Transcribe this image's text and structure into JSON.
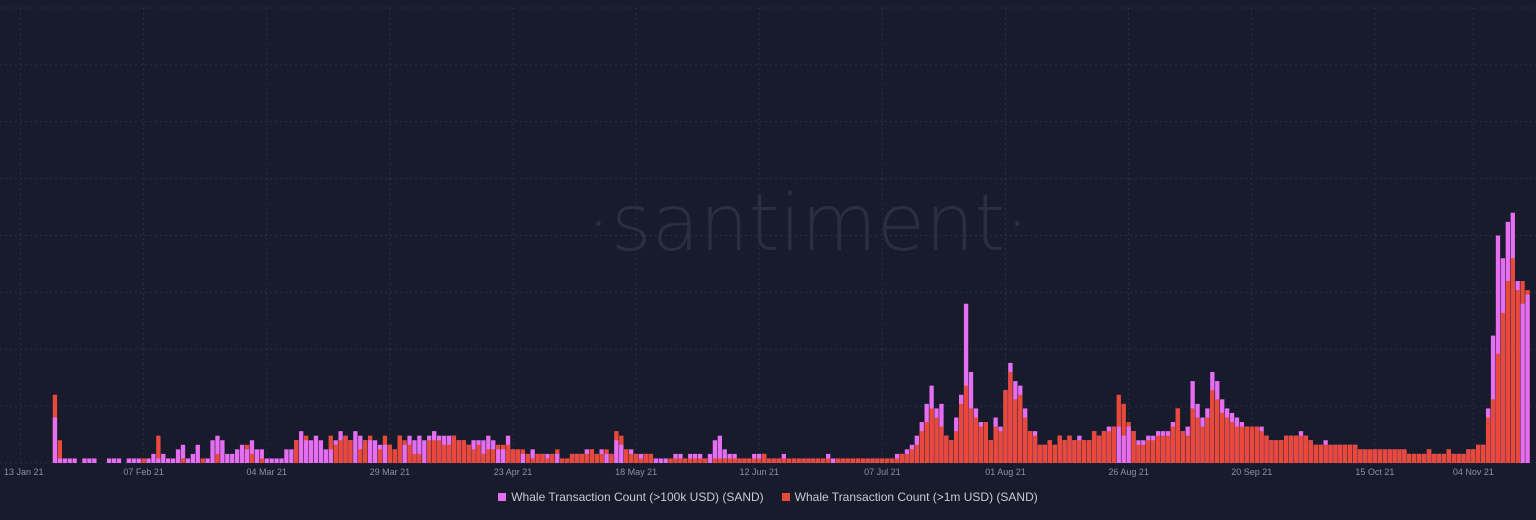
{
  "watermark": "·santiment·",
  "colors": {
    "background": "#181b2b",
    "grid": "#2a2e42",
    "tick_text": "#8b8fa3",
    "watermark": "#2a2e40"
  },
  "chart_data": {
    "type": "bar",
    "stacking": "overlapping",
    "title": "",
    "xlabel": "",
    "ylabel": "",
    "grid": true,
    "legend_position": "bottom-center",
    "x_tick_labels": [
      "13 Jan 21",
      "07 Feb 21",
      "04 Mar 21",
      "29 Mar 21",
      "23 Apr 21",
      "18 May 21",
      "12 Jun 21",
      "07 Jul 21",
      "01 Aug 21",
      "26 Aug 21",
      "20 Sep 21",
      "15 Oct 21",
      "04 Nov 21"
    ],
    "x_tick_days": [
      "2021-01-13",
      "2021-02-07",
      "2021-03-04",
      "2021-03-29",
      "2021-04-23",
      "2021-05-18",
      "2021-06-12",
      "2021-07-07",
      "2021-08-01",
      "2021-08-26",
      "2021-09-20",
      "2021-10-15",
      "2021-11-04"
    ],
    "ylim": [
      0,
      100
    ],
    "start_date": "2021-01-13",
    "series": [
      {
        "name": "Whale Transaction Count (>100k USD) (SAND)",
        "color": "#e56ef2",
        "values": [
          0,
          0,
          0,
          0,
          0,
          0,
          0,
          10,
          1,
          1,
          1,
          1,
          0,
          1,
          1,
          1,
          0,
          0,
          1,
          1,
          1,
          0,
          1,
          1,
          1,
          1,
          1,
          2,
          1,
          2,
          1,
          1,
          3,
          4,
          1,
          2,
          4,
          1,
          1,
          5,
          6,
          5,
          2,
          2,
          3,
          4,
          3,
          5,
          3,
          3,
          1,
          1,
          1,
          1,
          3,
          3,
          5,
          7,
          5,
          5,
          6,
          5,
          3,
          3,
          5,
          7,
          6,
          5,
          7,
          6,
          5,
          5,
          5,
          4,
          4,
          4,
          3,
          6,
          4,
          6,
          5,
          6,
          5,
          6,
          7,
          6,
          6,
          6,
          6,
          5,
          5,
          4,
          5,
          5,
          5,
          6,
          5,
          3,
          3,
          6,
          3,
          3,
          2,
          2,
          3,
          2,
          2,
          2,
          2,
          2,
          1,
          1,
          2,
          2,
          2,
          3,
          3,
          2,
          3,
          2,
          2,
          5,
          4,
          3,
          3,
          2,
          2,
          2,
          2,
          1,
          1,
          1,
          1,
          2,
          2,
          1,
          2,
          2,
          2,
          1,
          2,
          5,
          6,
          3,
          2,
          2,
          1,
          1,
          1,
          2,
          2,
          2,
          1,
          1,
          1,
          2,
          1,
          1,
          1,
          1,
          1,
          1,
          1,
          1,
          2,
          1,
          1,
          1,
          1,
          1,
          1,
          1,
          1,
          1,
          1,
          1,
          1,
          1,
          2,
          2,
          3,
          4,
          6,
          9,
          13,
          17,
          12,
          13,
          6,
          5,
          10,
          15,
          35,
          20,
          12,
          9,
          9,
          5,
          10,
          8,
          16,
          22,
          18,
          17,
          12,
          7,
          7,
          4,
          4,
          5,
          4,
          6,
          5,
          6,
          5,
          6,
          5,
          5,
          7,
          6,
          7,
          8,
          8,
          8,
          6,
          8,
          7,
          5,
          5,
          6,
          6,
          7,
          7,
          7,
          9,
          12,
          7,
          8,
          18,
          13,
          10,
          12,
          20,
          18,
          14,
          12,
          11,
          10,
          9,
          8,
          8,
          8,
          8,
          6,
          5,
          5,
          5,
          6,
          6,
          6,
          7,
          6,
          5,
          4,
          4,
          5,
          4,
          4,
          4,
          4,
          4,
          4,
          3,
          3,
          3,
          3,
          3,
          3,
          3,
          3,
          3,
          3,
          2,
          2,
          2,
          2,
          3,
          2,
          2,
          2,
          3,
          2,
          2,
          2,
          3,
          3,
          4,
          4,
          12,
          28,
          50,
          45,
          53,
          55,
          40,
          35,
          37
        ]
      },
      {
        "name": "Whale Transaction Count (>1m USD) (SAND)",
        "color": "#e8493b",
        "values": [
          0,
          0,
          0,
          0,
          0,
          0,
          0,
          15,
          5,
          0,
          0,
          0,
          0,
          0,
          0,
          0,
          0,
          0,
          0,
          0,
          0,
          0,
          0,
          0,
          0,
          1,
          0,
          0,
          6,
          0,
          0,
          0,
          0,
          1,
          0,
          0,
          0,
          1,
          0,
          0,
          2,
          0,
          0,
          0,
          0,
          0,
          4,
          2,
          0,
          1,
          0,
          0,
          0,
          0,
          0,
          0,
          5,
          0,
          6,
          0,
          0,
          0,
          0,
          6,
          4,
          5,
          6,
          5,
          0,
          3,
          5,
          6,
          0,
          3,
          6,
          4,
          3,
          6,
          5,
          4,
          2,
          2,
          0,
          5,
          5,
          5,
          4,
          4,
          6,
          5,
          5,
          4,
          3,
          4,
          2,
          3,
          3,
          4,
          4,
          4,
          3,
          3,
          3,
          2,
          1,
          2,
          2,
          1,
          2,
          3,
          1,
          1,
          2,
          2,
          2,
          2,
          3,
          2,
          2,
          3,
          2,
          7,
          6,
          3,
          2,
          2,
          1,
          2,
          2,
          0,
          0,
          0,
          1,
          1,
          1,
          1,
          1,
          1,
          1,
          1,
          0,
          1,
          1,
          1,
          1,
          1,
          1,
          1,
          1,
          1,
          1,
          2,
          1,
          1,
          1,
          1,
          1,
          1,
          1,
          1,
          1,
          1,
          1,
          1,
          1,
          0,
          1,
          1,
          1,
          1,
          1,
          1,
          1,
          1,
          1,
          1,
          1,
          1,
          1,
          2,
          2,
          3,
          4,
          7,
          9,
          12,
          10,
          8,
          6,
          5,
          7,
          13,
          17,
          12,
          10,
          8,
          9,
          5,
          8,
          7,
          16,
          20,
          14,
          15,
          10,
          7,
          6,
          4,
          4,
          5,
          4,
          6,
          5,
          6,
          5,
          5,
          5,
          5,
          7,
          6,
          7,
          7,
          8,
          15,
          13,
          9,
          7,
          4,
          4,
          5,
          5,
          6,
          6,
          6,
          8,
          12,
          7,
          6,
          12,
          10,
          8,
          10,
          16,
          14,
          11,
          10,
          9,
          8,
          8,
          8,
          8,
          8,
          7,
          6,
          5,
          5,
          5,
          6,
          6,
          6,
          6,
          6,
          5,
          4,
          4,
          4,
          4,
          4,
          4,
          4,
          4,
          4,
          3,
          3,
          3,
          3,
          3,
          3,
          3,
          3,
          3,
          3,
          2,
          2,
          2,
          2,
          3,
          2,
          2,
          2,
          3,
          2,
          2,
          2,
          3,
          3,
          4,
          4,
          10,
          14,
          24,
          33,
          40,
          45,
          38,
          40,
          38
        ]
      }
    ]
  }
}
